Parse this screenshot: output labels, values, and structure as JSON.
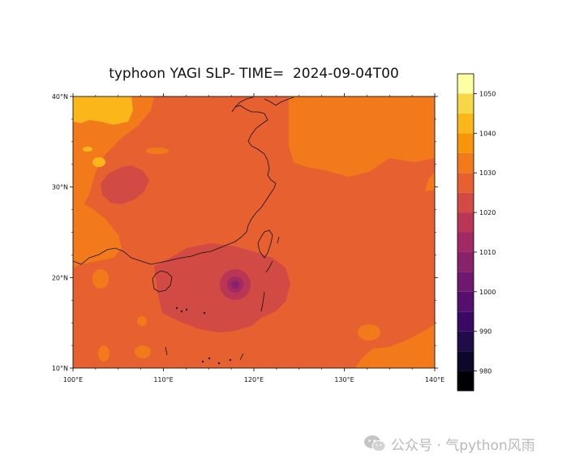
{
  "map": {
    "title": "typhoon YAGI SLP- TIME=  2024-09-04T00",
    "lon_range": [
      100,
      140
    ],
    "lat_range": [
      10,
      40
    ],
    "lon_ticks": [
      {
        "value": 100,
        "label": "100°E"
      },
      {
        "value": 110,
        "label": "110°E"
      },
      {
        "value": 120,
        "label": "120°E"
      },
      {
        "value": 130,
        "label": "130°E"
      },
      {
        "value": 140,
        "label": "140°E"
      }
    ],
    "lat_ticks": [
      {
        "value": 10,
        "label": "10°N"
      },
      {
        "value": 20,
        "label": "20°N"
      },
      {
        "value": 30,
        "label": "30°N"
      },
      {
        "value": 40,
        "label": "40°N"
      }
    ],
    "typhoon_center": {
      "lon": 118,
      "lat": 19.3
    }
  },
  "colorbar": {
    "levels": [
      975,
      980,
      985,
      990,
      995,
      1000,
      1005,
      1010,
      1015,
      1020,
      1025,
      1030,
      1035,
      1040,
      1045,
      1050,
      1055
    ],
    "colors": [
      "#000004",
      "#0d0829",
      "#1f0c48",
      "#3a0963",
      "#550f6d",
      "#6e186e",
      "#88226a",
      "#a12a64",
      "#ba3655",
      "#d14a44",
      "#e6612f",
      "#f27a1a",
      "#f8950b",
      "#fbb61a",
      "#f6d746",
      "#fcffa4"
    ],
    "tick_labels": [
      "980",
      "990",
      "1000",
      "1010",
      "1020",
      "1030",
      "1040",
      "1050"
    ]
  },
  "watermark": {
    "text": "公众号 · 气python风雨"
  }
}
